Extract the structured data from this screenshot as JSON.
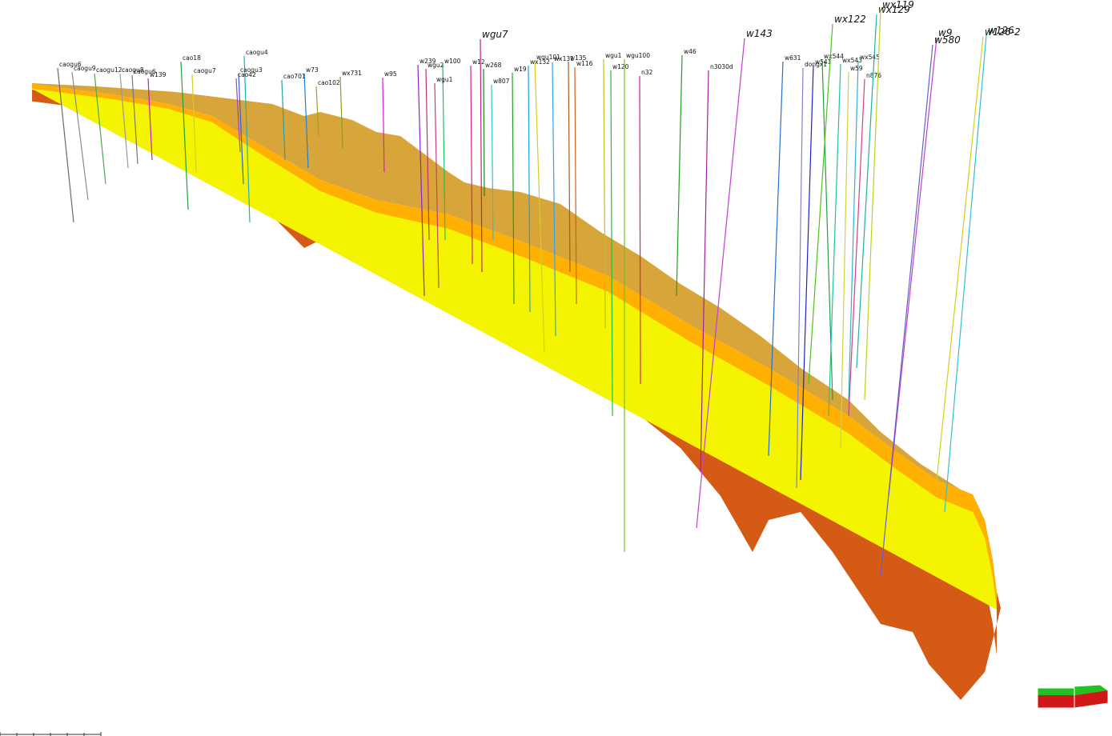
{
  "viewer": {
    "background": "#ffffff",
    "layer_colors": {
      "top_surface": "#d8a53a",
      "orange": "#ffb000",
      "yellow": "#f4f400",
      "lime": "#b8f400",
      "red": "#ff1a00",
      "base_stripe": "#ff6a00",
      "basement": "#d45a16"
    }
  },
  "wells": [
    {
      "name": "caogu6",
      "color": "#6a6a6a"
    },
    {
      "name": "caogu9",
      "color": "#8a8a8a"
    },
    {
      "name": "caogu12",
      "color": "#4fa84f"
    },
    {
      "name": "caogu8",
      "color": "#9a9a9a"
    },
    {
      "name": "caogu6",
      "color": "#777777"
    },
    {
      "name": "w139",
      "color": "#c020c0"
    },
    {
      "name": "cao18",
      "color": "#20a040"
    },
    {
      "name": "caogu7",
      "color": "#d0d020"
    },
    {
      "name": "caogu4",
      "color": "#20b0c0"
    },
    {
      "name": "caogu3",
      "color": "#3060d0"
    },
    {
      "name": "cao42",
      "color": "#a040d0"
    },
    {
      "name": "cao701",
      "color": "#20a0a0"
    },
    {
      "name": "w73",
      "color": "#2080d0"
    },
    {
      "name": "wx731",
      "color": "#80a020"
    },
    {
      "name": "cao102",
      "color": "#a0a020"
    },
    {
      "name": "w95",
      "color": "#d020d0"
    },
    {
      "name": "w239",
      "color": "#9020d0"
    },
    {
      "name": "w100",
      "color": "#20c060"
    },
    {
      "name": "wgu2",
      "color": "#c03060"
    },
    {
      "name": "wgu1",
      "color": "#c04080"
    },
    {
      "name": "w12",
      "color": "#d020a0"
    },
    {
      "name": "wgu7",
      "color": "#c02080"
    },
    {
      "name": "w268",
      "color": "#208020"
    },
    {
      "name": "wx132",
      "color": "#20a0e0"
    },
    {
      "name": "w807",
      "color": "#30c0d0"
    },
    {
      "name": "w19",
      "color": "#20a020"
    },
    {
      "name": "wgu101",
      "color": "#d0d020"
    },
    {
      "name": "wx131",
      "color": "#30a0f0"
    },
    {
      "name": "w135",
      "color": "#a06020"
    },
    {
      "name": "w116",
      "color": "#d06020"
    },
    {
      "name": "wgu1",
      "color": "#c0c020"
    },
    {
      "name": "w120",
      "color": "#20c040"
    },
    {
      "name": "wgu100",
      "color": "#70c020"
    },
    {
      "name": "n32",
      "color": "#d02080"
    },
    {
      "name": "w46",
      "color": "#20a020"
    },
    {
      "name": "n3030d",
      "color": "#a020a0"
    },
    {
      "name": "w143",
      "color": "#c040d0"
    },
    {
      "name": "w631",
      "color": "#2070d0"
    },
    {
      "name": "w541",
      "color": "#2020c0"
    },
    {
      "name": "dongx1",
      "color": "#8080d0"
    },
    {
      "name": "wx544",
      "color": "#20a040"
    },
    {
      "name": "wx545",
      "color": "#30b0d0"
    },
    {
      "name": "wx543",
      "color": "#20c0a0"
    },
    {
      "name": "w59",
      "color": "#d0d040"
    },
    {
      "name": "n876",
      "color": "#d04080"
    },
    {
      "name": "wx122",
      "color": "#50c020"
    },
    {
      "name": "wx129",
      "color": "#20b0a0"
    },
    {
      "name": "wx119",
      "color": "#c0d020"
    },
    {
      "name": "w9",
      "color": "#c040c0"
    },
    {
      "name": "w580",
      "color": "#6060d0"
    },
    {
      "name": "w126-2",
      "color": "#d0d020"
    },
    {
      "name": "w126",
      "color": "#30c0d0"
    }
  ],
  "orientation_widget": {
    "top_color": "#22c022",
    "bottom_color": "#d01818",
    "side_color": "#ffffff"
  },
  "scale_bar": {
    "color": "#333333"
  }
}
